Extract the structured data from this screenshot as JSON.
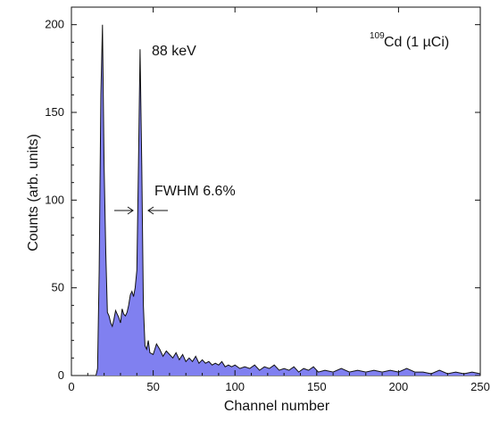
{
  "chart_data": {
    "type": "area",
    "title": "",
    "xlabel": "Channel number",
    "ylabel": "Counts (arb. units)",
    "xlim": [
      0,
      250
    ],
    "ylim": [
      0,
      210
    ],
    "xticks": [
      0,
      50,
      100,
      150,
      200,
      250
    ],
    "yticks": [
      0,
      50,
      100,
      150,
      200
    ],
    "grid": false,
    "fill_color": "#8080f0",
    "line_color": "#111111",
    "series": [
      {
        "x": [
          15,
          16,
          17,
          18,
          19,
          20,
          21,
          22,
          23,
          24,
          25,
          26,
          27,
          28,
          29,
          30,
          31,
          32,
          33,
          34,
          35,
          36,
          37,
          38,
          39,
          40,
          41,
          42,
          43,
          44,
          45,
          46,
          47,
          48,
          50,
          52,
          54,
          56,
          58,
          60,
          62,
          64,
          66,
          68,
          70,
          72,
          74,
          76,
          78,
          80,
          82,
          84,
          86,
          88,
          90,
          92,
          94,
          96,
          98,
          100,
          103,
          106,
          109,
          112,
          115,
          118,
          121,
          124,
          127,
          130,
          133,
          136,
          139,
          142,
          145,
          148,
          151,
          155,
          160,
          165,
          170,
          175,
          180,
          185,
          190,
          195,
          200,
          205,
          210,
          215,
          220,
          225,
          230,
          235,
          240,
          245,
          250
        ],
        "values": [
          0,
          4,
          60,
          160,
          200,
          120,
          70,
          36,
          34,
          30,
          28,
          32,
          37,
          35,
          33,
          30,
          38,
          35,
          34,
          36,
          40,
          46,
          48,
          45,
          50,
          60,
          120,
          186,
          120,
          40,
          17,
          15,
          20,
          13,
          12,
          18,
          15,
          11,
          14,
          12,
          10,
          13,
          9,
          12,
          8,
          10,
          8,
          11,
          7,
          9,
          7,
          8,
          6,
          7,
          6,
          8,
          5,
          6,
          5,
          6,
          4,
          5,
          4,
          6,
          3,
          5,
          4,
          6,
          3,
          4,
          3,
          5,
          2,
          4,
          3,
          5,
          2,
          3,
          2,
          4,
          2,
          3,
          2,
          3,
          2,
          3,
          2,
          4,
          2,
          2,
          1,
          3,
          1,
          2,
          1,
          2,
          1
        ]
      }
    ]
  },
  "annotations": {
    "peak_label": "88 keV",
    "fwhm_label": "FWHM 6.6%",
    "source_sup": "109",
    "source_label": "Cd (1 µCi)"
  }
}
